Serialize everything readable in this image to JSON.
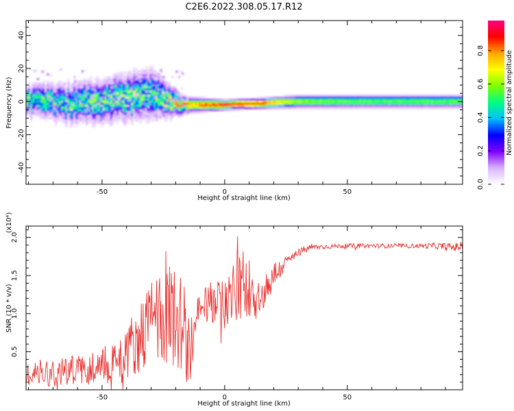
{
  "chart_data": [
    {
      "type": "heatmap",
      "title": "C2E6.2022.308.05.17.R12",
      "xlabel": "Height of straight line (km)",
      "ylabel": "Frequency (Hz)",
      "xlim": [
        -81,
        97
      ],
      "ylim": [
        -50,
        49
      ],
      "xticks": [
        -50,
        0,
        50
      ],
      "yticks": [
        -40,
        -20,
        0,
        20,
        40
      ],
      "colorbar": {
        "label": "Normalized spectral amplitude",
        "range": [
          0.0,
          0.98
        ],
        "ticks": [
          "0.0",
          "0.2",
          "0.4",
          "0.6",
          "0.8"
        ],
        "colors": [
          "#ffffff",
          "#d9b3ff",
          "#8000ff",
          "#0000ff",
          "#00c0ff",
          "#00ff80",
          "#80ff00",
          "#ffff00",
          "#ffa500",
          "#ff0000",
          "#ff0080"
        ]
      },
      "band": [
        {
          "x": -80,
          "center": 0,
          "halfwidth": 6,
          "amp": 0.45
        },
        {
          "x": -60,
          "center": -1,
          "halfwidth": 8,
          "amp": 0.45
        },
        {
          "x": -40,
          "center": 2,
          "halfwidth": 9,
          "amp": 0.5
        },
        {
          "x": -30,
          "center": 5,
          "halfwidth": 10,
          "amp": 0.45
        },
        {
          "x": -22,
          "center": 0,
          "halfwidth": 6,
          "amp": 0.6
        },
        {
          "x": -15,
          "center": -2,
          "halfwidth": 3,
          "amp": 0.75
        },
        {
          "x": 0,
          "center": -2,
          "halfwidth": 2,
          "amp": 0.9
        },
        {
          "x": 15,
          "center": -1,
          "halfwidth": 2,
          "amp": 0.85
        },
        {
          "x": 30,
          "center": 0,
          "halfwidth": 2.5,
          "amp": 0.6
        },
        {
          "x": 60,
          "center": 0,
          "halfwidth": 2.5,
          "amp": 0.55
        },
        {
          "x": 95,
          "center": 0,
          "halfwidth": 2.5,
          "amp": 0.55
        }
      ]
    },
    {
      "type": "line",
      "xlabel": "Height of straight line (km)",
      "ylabel": "SNR (10 * v/v)",
      "scale_note": "(x10⁴)",
      "xlim": [
        -81,
        97
      ],
      "ylim": [
        0,
        2.15
      ],
      "xticks": [
        -50,
        0,
        50
      ],
      "yticks": [
        "0.5",
        "1.0",
        "1.5",
        "2.0"
      ],
      "ytick_values": [
        0.5,
        1.0,
        1.5,
        2.0
      ],
      "color": "#e8312f",
      "series": [
        {
          "x": [
            -81,
            -75,
            -70,
            -65,
            -60,
            -55,
            -50,
            -45,
            -40,
            -36,
            -32,
            -30,
            -27,
            -24,
            -21,
            -18,
            -16,
            -14,
            -12,
            -10,
            -8,
            -5,
            -2,
            0,
            2,
            5,
            8,
            10,
            12,
            14,
            16,
            18,
            20,
            23,
            26,
            30,
            35,
            40,
            50,
            60,
            70,
            80,
            85,
            90,
            93,
            97
          ],
          "mean": [
            0.2,
            0.22,
            0.24,
            0.25,
            0.27,
            0.28,
            0.32,
            0.4,
            0.5,
            0.65,
            0.8,
            0.9,
            0.95,
            0.98,
            1.0,
            0.9,
            0.7,
            0.5,
            0.8,
            1.0,
            1.1,
            1.15,
            1.15,
            1.15,
            1.2,
            1.3,
            1.4,
            1.35,
            1.3,
            1.2,
            1.25,
            1.4,
            1.5,
            1.6,
            1.7,
            1.8,
            1.87,
            1.88,
            1.89,
            1.89,
            1.89,
            1.89,
            1.89,
            1.88,
            1.87,
            1.88
          ],
          "amplitude": [
            0.15,
            0.18,
            0.2,
            0.2,
            0.2,
            0.22,
            0.25,
            0.3,
            0.35,
            0.45,
            0.5,
            0.55,
            0.6,
            0.65,
            0.7,
            0.7,
            0.6,
            0.5,
            0.35,
            0.3,
            0.25,
            0.3,
            0.3,
            0.35,
            0.4,
            0.45,
            0.5,
            0.4,
            0.4,
            0.35,
            0.3,
            0.25,
            0.2,
            0.12,
            0.08,
            0.06,
            0.04,
            0.03,
            0.03,
            0.03,
            0.03,
            0.03,
            0.04,
            0.05,
            0.06,
            0.05
          ]
        }
      ]
    }
  ]
}
